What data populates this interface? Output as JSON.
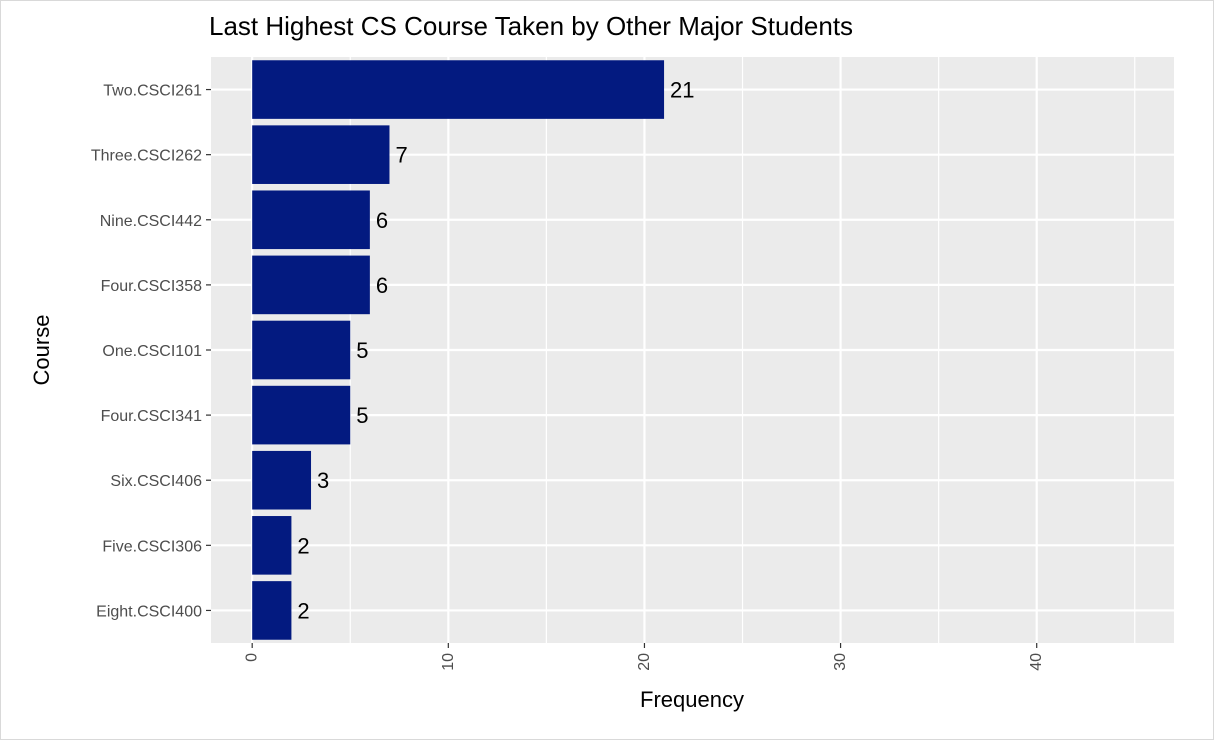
{
  "chart_data": {
    "type": "bar",
    "orientation": "horizontal",
    "title": "Last Highest CS Course Taken by Other Major Students",
    "xlabel": "Frequency",
    "ylabel": "Course",
    "categories": [
      "Two.CSCI261",
      "Three.CSCI262",
      "Nine.CSCI442",
      "Four.CSCI358",
      "One.CSCI101",
      "Four.CSCI341",
      "Six.CSCI406",
      "Five.CSCI306",
      "Eight.CSCI400"
    ],
    "values": [
      21,
      7,
      6,
      6,
      5,
      5,
      3,
      2,
      2
    ],
    "data_labels": [
      "21",
      "7",
      "6",
      "6",
      "5",
      "5",
      "3",
      "2",
      "2"
    ],
    "x_ticks": [
      0,
      10,
      20,
      30,
      40
    ],
    "x_tick_labels": [
      "0",
      "10",
      "20",
      "30",
      "40"
    ],
    "xlim": [
      -2.1,
      47
    ],
    "bar_color": "#031a80",
    "panel_color": "#ebebeb",
    "grid": true,
    "legend": "none"
  }
}
